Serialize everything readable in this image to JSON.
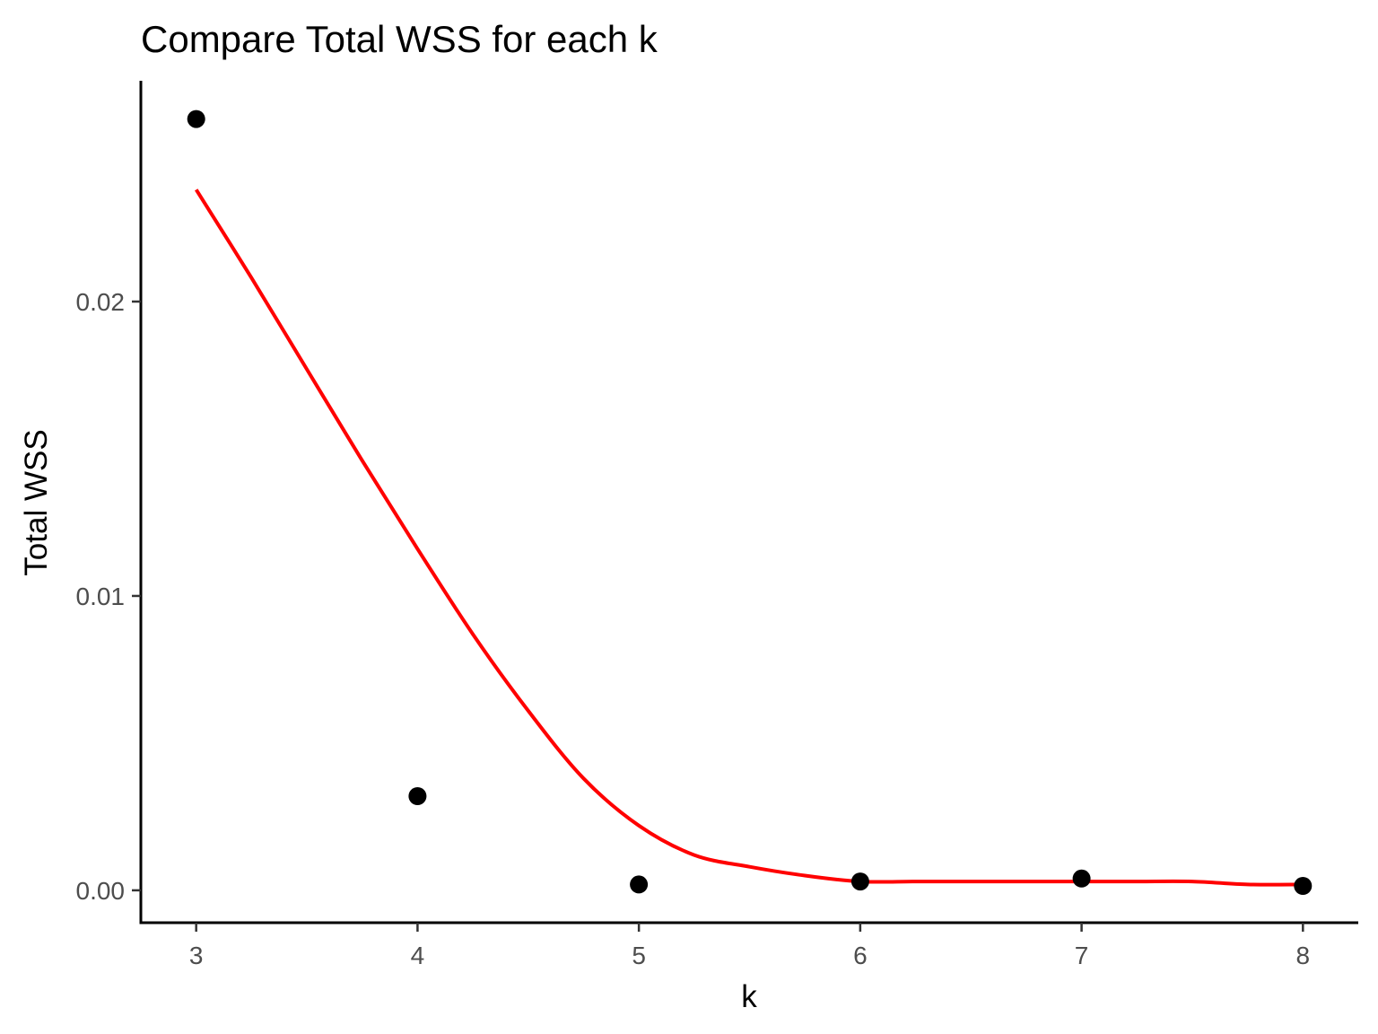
{
  "chart_data": {
    "type": "scatter",
    "title": "Compare Total WSS for each k",
    "xlabel": "k",
    "ylabel": "Total WSS",
    "x_ticks": [
      "3",
      "4",
      "5",
      "6",
      "7",
      "8"
    ],
    "y_ticks": [
      "0.00",
      "0.01",
      "0.02"
    ],
    "xlim": [
      2.75,
      8.25
    ],
    "ylim": [
      -0.0011,
      0.0275
    ],
    "grid": false,
    "legend": "none",
    "points": {
      "x": [
        3,
        4,
        5,
        6,
        7,
        8
      ],
      "y": [
        0.0262,
        0.0032,
        0.0002,
        0.0003,
        0.0004,
        0.00015
      ],
      "color": "#000000"
    },
    "smooth": {
      "x": [
        3.0,
        3.25,
        3.5,
        3.75,
        4.0,
        4.25,
        4.5,
        4.75,
        5.0,
        5.25,
        5.5,
        5.75,
        6.0,
        6.25,
        6.5,
        6.75,
        7.0,
        7.25,
        7.5,
        7.75,
        8.0
      ],
      "y": [
        0.0238,
        0.0208,
        0.0177,
        0.0146,
        0.0116,
        0.0087,
        0.0061,
        0.0038,
        0.0022,
        0.0012,
        0.0008,
        0.0005,
        0.0003,
        0.0003,
        0.0003,
        0.0003,
        0.0003,
        0.0003,
        0.0003,
        0.0002,
        0.0002
      ],
      "color": "#ff0000"
    }
  }
}
